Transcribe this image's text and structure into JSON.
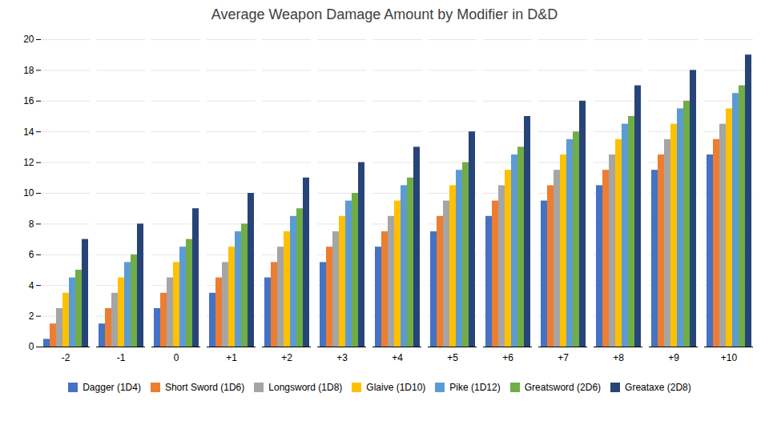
{
  "chart_data": {
    "type": "bar",
    "title": "Average Weapon Damage Amount by Modifier in D&D",
    "categories": [
      "-2",
      "-1",
      "0",
      "+1",
      "+2",
      "+3",
      "+4",
      "+5",
      "+6",
      "+7",
      "+8",
      "+9",
      "+10"
    ],
    "series": [
      {
        "name": "Dagger (1D4)",
        "color": "#4472C4",
        "values": [
          0.5,
          1.5,
          2.5,
          3.5,
          4.5,
          5.5,
          6.5,
          7.5,
          8.5,
          9.5,
          10.5,
          11.5,
          12.5
        ]
      },
      {
        "name": "Short Sword (1D6)",
        "color": "#ED7D31",
        "values": [
          1.5,
          2.5,
          3.5,
          4.5,
          5.5,
          6.5,
          7.5,
          8.5,
          9.5,
          10.5,
          11.5,
          12.5,
          13.5
        ]
      },
      {
        "name": "Longsword (1D8)",
        "color": "#A5A5A5",
        "values": [
          2.5,
          3.5,
          4.5,
          5.5,
          6.5,
          7.5,
          8.5,
          9.5,
          10.5,
          11.5,
          12.5,
          13.5,
          14.5
        ]
      },
      {
        "name": "Glaive (1D10)",
        "color": "#FFC000",
        "values": [
          3.5,
          4.5,
          5.5,
          6.5,
          7.5,
          8.5,
          9.5,
          10.5,
          11.5,
          12.5,
          13.5,
          14.5,
          15.5
        ]
      },
      {
        "name": "Pike (1D12)",
        "color": "#5B9BD5",
        "values": [
          4.5,
          5.5,
          6.5,
          7.5,
          8.5,
          9.5,
          10.5,
          11.5,
          12.5,
          13.5,
          14.5,
          15.5,
          16.5
        ]
      },
      {
        "name": "Greatsword (2D6)",
        "color": "#70AD47",
        "values": [
          5,
          6,
          7,
          8,
          9,
          10,
          11,
          12,
          13,
          14,
          15,
          16,
          17
        ]
      },
      {
        "name": "Greataxe (2D8)",
        "color": "#264478",
        "values": [
          7,
          8,
          9,
          10,
          11,
          12,
          13,
          14,
          15,
          16,
          17,
          18,
          19
        ]
      }
    ],
    "ylim": [
      0,
      20
    ],
    "yticks": [
      0,
      2,
      4,
      6,
      8,
      10,
      12,
      14,
      16,
      18,
      20
    ],
    "grid": true,
    "legend": "bottom"
  }
}
